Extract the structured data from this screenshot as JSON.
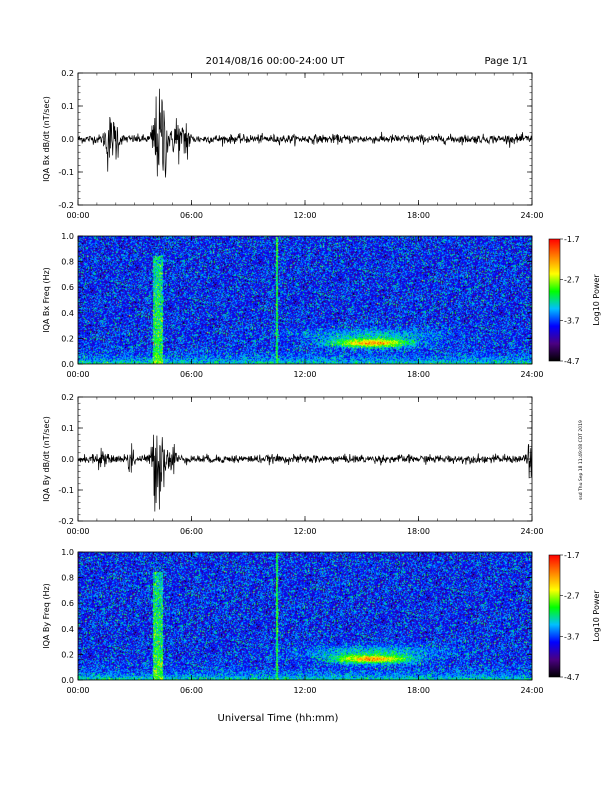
{
  "header": {
    "title": "2014/08/16  00:00-24:00 UT",
    "page": "Page 1/1"
  },
  "footer": {
    "xlabel": "Universal Time (hh:mm)"
  },
  "side_note": "ssd Thu Sep 18 11:49:08 CDT 2019",
  "colors": {
    "trace": "#000000",
    "colorbar": [
      "#000000",
      "#4b0082",
      "#0000ff",
      "#00bfff",
      "#00ff00",
      "#ffff00",
      "#ff8000",
      "#ff0000"
    ]
  },
  "chart_data": [
    {
      "type": "line",
      "ylabel": "IQA Bx dB/dt (nT/sec)",
      "xlim": [
        0,
        24
      ],
      "ylim": [
        -0.2,
        0.2
      ],
      "xticks": [
        "00:00",
        "06:00",
        "12:00",
        "18:00",
        "24:00"
      ],
      "yticks": [
        "-0.2",
        "-0.1",
        "0.0",
        "0.1",
        "0.2"
      ],
      "baseline_noise": 0.012,
      "bursts": [
        {
          "x": 1.6,
          "amp": 0.08
        },
        {
          "x": 2.0,
          "amp": 0.06
        },
        {
          "x": 4.1,
          "amp": 0.1
        },
        {
          "x": 4.4,
          "amp": 0.11
        },
        {
          "x": 4.6,
          "amp": 0.08
        },
        {
          "x": 5.2,
          "amp": 0.08
        },
        {
          "x": 5.7,
          "amp": 0.07
        }
      ]
    },
    {
      "type": "heatmap",
      "ylabel": "IQA Bx Freq (Hz)",
      "xlim": [
        0,
        24
      ],
      "ylim": [
        0,
        1.0
      ],
      "xticks": [
        "00:00",
        "06:00",
        "12:00",
        "18:00",
        "24:00"
      ],
      "yticks": [
        "0.0",
        "0.2",
        "0.4",
        "0.6",
        "0.8",
        "1.0"
      ],
      "colorbar": {
        "label": "Log10 Power",
        "ticks": [
          "-1.7",
          "-2.7",
          "-3.7",
          "-4.7"
        ],
        "range": [
          -4.7,
          -1.7
        ]
      },
      "features": [
        {
          "kind": "vertical_band",
          "x": 4.2,
          "width": 0.5,
          "fmax": 0.85,
          "level": -2.8
        },
        {
          "kind": "vertical_line",
          "x": 10.5,
          "fmax": 1.0,
          "level": -2.9
        },
        {
          "kind": "blob",
          "x": 15.5,
          "f": 0.17,
          "level": -1.9
        },
        {
          "kind": "low_freq_floor",
          "level": -3.0
        }
      ]
    },
    {
      "type": "line",
      "ylabel": "IQA By dB/dt (nT/sec)",
      "xlim": [
        0,
        24
      ],
      "ylim": [
        -0.2,
        0.2
      ],
      "xticks": [
        "00:00",
        "06:00",
        "12:00",
        "18:00",
        "24:00"
      ],
      "yticks": [
        "-0.2",
        "-0.1",
        "0.0",
        "0.1",
        "0.2"
      ],
      "baseline_noise": 0.012,
      "bursts": [
        {
          "x": 1.2,
          "amp": 0.04
        },
        {
          "x": 2.8,
          "amp": 0.05
        },
        {
          "x": 4.1,
          "amp": 0.13
        },
        {
          "x": 4.4,
          "amp": 0.14
        },
        {
          "x": 5.0,
          "amp": 0.06
        },
        {
          "x": 23.9,
          "amp": 0.1
        }
      ]
    },
    {
      "type": "heatmap",
      "ylabel": "IQA By Freq (Hz)",
      "xlim": [
        0,
        24
      ],
      "ylim": [
        0,
        1.0
      ],
      "xticks": [
        "00:00",
        "06:00",
        "12:00",
        "18:00",
        "24:00"
      ],
      "yticks": [
        "0.0",
        "0.2",
        "0.4",
        "0.6",
        "0.8",
        "1.0"
      ],
      "colorbar": {
        "label": "Log10 Power",
        "ticks": [
          "-1.7",
          "-2.7",
          "-3.7",
          "-4.7"
        ],
        "range": [
          -4.7,
          -1.7
        ]
      },
      "features": [
        {
          "kind": "vertical_band",
          "x": 4.2,
          "width": 0.5,
          "fmax": 0.85,
          "level": -2.8
        },
        {
          "kind": "vertical_line",
          "x": 10.5,
          "fmax": 1.0,
          "level": -2.9
        },
        {
          "kind": "blob",
          "x": 15.5,
          "f": 0.17,
          "level": -1.9
        },
        {
          "kind": "low_freq_floor",
          "level": -3.0
        }
      ]
    }
  ]
}
